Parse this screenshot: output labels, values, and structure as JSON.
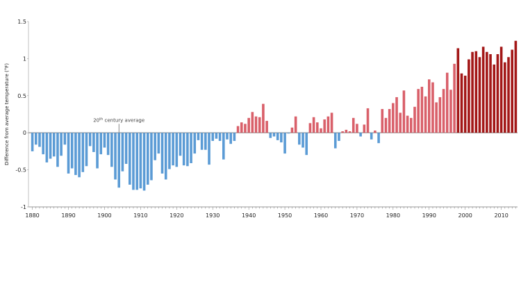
{
  "chart_data": {
    "type": "bar",
    "title": "",
    "xlabel": "",
    "ylabel": "Difference from average temperature (°F)",
    "xlim": [
      1880,
      2014
    ],
    "ylim": [
      -1,
      1.5
    ],
    "y_ticks": [
      -1,
      -0.5,
      0,
      0.5,
      1,
      1.5
    ],
    "y_tick_labels": [
      "-1",
      "-0.5",
      "0",
      "0.5",
      "1",
      "1.5"
    ],
    "x_ticks": [
      1880,
      1890,
      1900,
      1910,
      1920,
      1930,
      1940,
      1950,
      1960,
      1970,
      1980,
      1990,
      2000,
      2010
    ],
    "x_tick_labels": [
      "1880",
      "1890",
      "1900",
      "1910",
      "1920",
      "1930",
      "1940",
      "1950",
      "1960",
      "1970",
      "1980",
      "1990",
      "2000",
      "2010"
    ],
    "grid": false,
    "colors": {
      "negative": "#5b9bd5",
      "positive": "#d9606a",
      "recent": "#a31717"
    },
    "annotation": {
      "base": "20",
      "superscript": "th",
      "rest": " century average",
      "x": 1904
    },
    "x": [
      1880,
      1881,
      1882,
      1883,
      1884,
      1885,
      1886,
      1887,
      1888,
      1889,
      1890,
      1891,
      1892,
      1893,
      1894,
      1895,
      1896,
      1897,
      1898,
      1899,
      1900,
      1901,
      1902,
      1903,
      1904,
      1905,
      1906,
      1907,
      1908,
      1909,
      1910,
      1911,
      1912,
      1913,
      1914,
      1915,
      1916,
      1917,
      1918,
      1919,
      1920,
      1921,
      1922,
      1923,
      1924,
      1925,
      1926,
      1927,
      1928,
      1929,
      1930,
      1931,
      1932,
      1933,
      1934,
      1935,
      1936,
      1937,
      1938,
      1939,
      1940,
      1941,
      1942,
      1943,
      1944,
      1945,
      1946,
      1947,
      1948,
      1949,
      1950,
      1951,
      1952,
      1953,
      1954,
      1955,
      1956,
      1957,
      1958,
      1959,
      1960,
      1961,
      1962,
      1963,
      1964,
      1965,
      1966,
      1967,
      1968,
      1969,
      1970,
      1971,
      1972,
      1973,
      1974,
      1975,
      1976,
      1977,
      1978,
      1979,
      1980,
      1981,
      1982,
      1983,
      1984,
      1985,
      1986,
      1987,
      1988,
      1989,
      1990,
      1991,
      1992,
      1993,
      1994,
      1995,
      1996,
      1997,
      1998,
      1999,
      2000,
      2001,
      2002,
      2003,
      2004,
      2005,
      2006,
      2007,
      2008,
      2009,
      2010,
      2011,
      2012,
      2013,
      2014
    ],
    "values": [
      -0.25,
      -0.16,
      -0.19,
      -0.29,
      -0.4,
      -0.35,
      -0.32,
      -0.46,
      -0.31,
      -0.16,
      -0.55,
      -0.48,
      -0.57,
      -0.6,
      -0.53,
      -0.45,
      -0.18,
      -0.26,
      -0.48,
      -0.29,
      -0.2,
      -0.3,
      -0.46,
      -0.63,
      -0.74,
      -0.52,
      -0.42,
      -0.7,
      -0.77,
      -0.77,
      -0.75,
      -0.78,
      -0.7,
      -0.64,
      -0.37,
      -0.28,
      -0.55,
      -0.63,
      -0.49,
      -0.44,
      -0.46,
      -0.31,
      -0.44,
      -0.45,
      -0.41,
      -0.28,
      -0.1,
      -0.23,
      -0.23,
      -0.43,
      -0.11,
      -0.08,
      -0.11,
      -0.36,
      -0.09,
      -0.15,
      -0.11,
      0.09,
      0.14,
      0.12,
      0.2,
      0.28,
      0.22,
      0.21,
      0.39,
      0.16,
      -0.07,
      -0.05,
      -0.1,
      -0.13,
      -0.28,
      -0.01,
      0.07,
      0.22,
      -0.16,
      -0.2,
      -0.3,
      0.13,
      0.21,
      0.14,
      0.06,
      0.18,
      0.22,
      0.27,
      -0.21,
      -0.11,
      0.02,
      0.04,
      0.02,
      0.2,
      0.12,
      -0.05,
      0.11,
      0.33,
      -0.09,
      0.03,
      -0.14,
      0.32,
      0.2,
      0.32,
      0.4,
      0.48,
      0.27,
      0.57,
      0.23,
      0.2,
      0.35,
      0.59,
      0.62,
      0.49,
      0.72,
      0.68,
      0.41,
      0.48,
      0.59,
      0.81,
      0.58,
      0.93,
      1.14,
      0.8,
      0.77,
      0.99,
      1.09,
      1.1,
      1.02,
      1.16,
      1.09,
      1.06,
      0.92,
      1.06,
      1.16,
      0.95,
      1.02,
      1.12,
      1.24
    ]
  }
}
